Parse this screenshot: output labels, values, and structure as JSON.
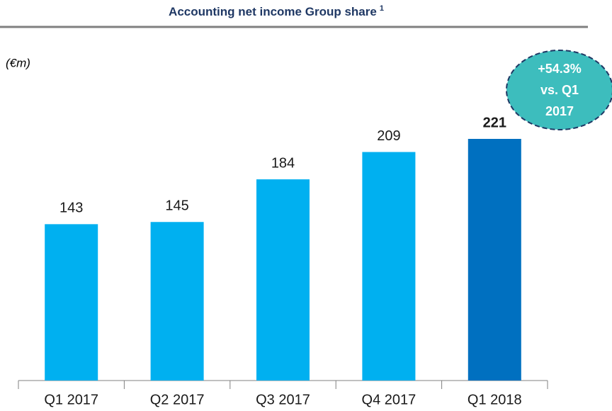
{
  "chart_data": {
    "type": "bar",
    "title": "Accounting net income Group share",
    "title_note": "1",
    "unit_label": "(€m)",
    "categories": [
      "Q1 2017",
      "Q2 2017",
      "Q3 2017",
      "Q4 2017",
      "Q1 2018"
    ],
    "values": [
      143,
      145,
      184,
      209,
      221
    ],
    "colors": [
      "#00b0f0",
      "#00b0f0",
      "#00b0f0",
      "#00b0f0",
      "#0070c0"
    ],
    "annotation_lines": [
      "+54.3%",
      "vs. Q1",
      "2017"
    ],
    "annotation_color": "#3dbdbd"
  }
}
